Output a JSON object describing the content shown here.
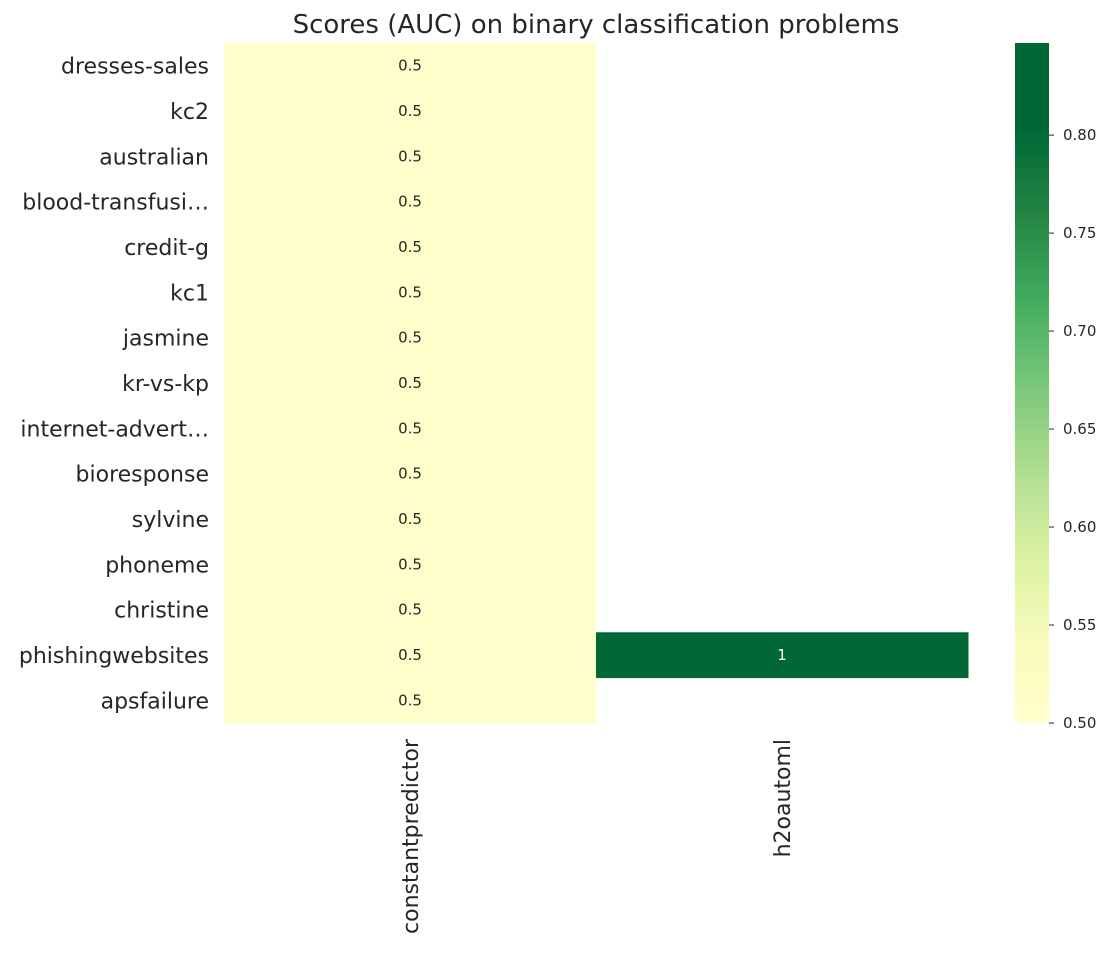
{
  "chart_data": {
    "type": "heatmap",
    "title": "Scores (AUC) on  binary classification problems",
    "xlabel": "",
    "ylabel": "",
    "rows": [
      "dresses-sales",
      "kc2",
      "australian",
      "blood-transfusi…",
      "credit-g",
      "kc1",
      "jasmine",
      "kr-vs-kp",
      "internet-advert…",
      "bioresponse",
      "sylvine",
      "phoneme",
      "christine",
      "phishingwebsites",
      "apsfailure"
    ],
    "columns": [
      "constantpredictor",
      "h2oautoml"
    ],
    "values": [
      [
        0.5,
        null
      ],
      [
        0.5,
        null
      ],
      [
        0.5,
        null
      ],
      [
        0.5,
        null
      ],
      [
        0.5,
        null
      ],
      [
        0.5,
        null
      ],
      [
        0.5,
        null
      ],
      [
        0.5,
        null
      ],
      [
        0.5,
        null
      ],
      [
        0.5,
        null
      ],
      [
        0.5,
        null
      ],
      [
        0.5,
        null
      ],
      [
        0.5,
        null
      ],
      [
        0.5,
        1
      ],
      [
        0.5,
        null
      ]
    ],
    "cell_labels": [
      [
        "0.5",
        ""
      ],
      [
        "0.5",
        ""
      ],
      [
        "0.5",
        ""
      ],
      [
        "0.5",
        ""
      ],
      [
        "0.5",
        ""
      ],
      [
        "0.5",
        ""
      ],
      [
        "0.5",
        ""
      ],
      [
        "0.5",
        ""
      ],
      [
        "0.5",
        ""
      ],
      [
        "0.5",
        ""
      ],
      [
        "0.5",
        ""
      ],
      [
        "0.5",
        ""
      ],
      [
        "0.5",
        ""
      ],
      [
        "0.5",
        "1"
      ],
      [
        "0.5",
        ""
      ]
    ],
    "colorbar": {
      "colormap": "YlGn",
      "range": [
        0.5,
        0.847
      ],
      "ticks": [
        0.5,
        0.55,
        0.6,
        0.65,
        0.7,
        0.75,
        0.8
      ],
      "tick_labels": [
        "0.50",
        "0.55",
        "0.60",
        "0.65",
        "0.70",
        "0.75",
        "0.80"
      ],
      "placement": "right"
    },
    "colors": {
      "low": "#ffffcc",
      "high": "#006837",
      "text_dark": "#262626",
      "text_light": "#ffffff"
    },
    "grid": false
  }
}
